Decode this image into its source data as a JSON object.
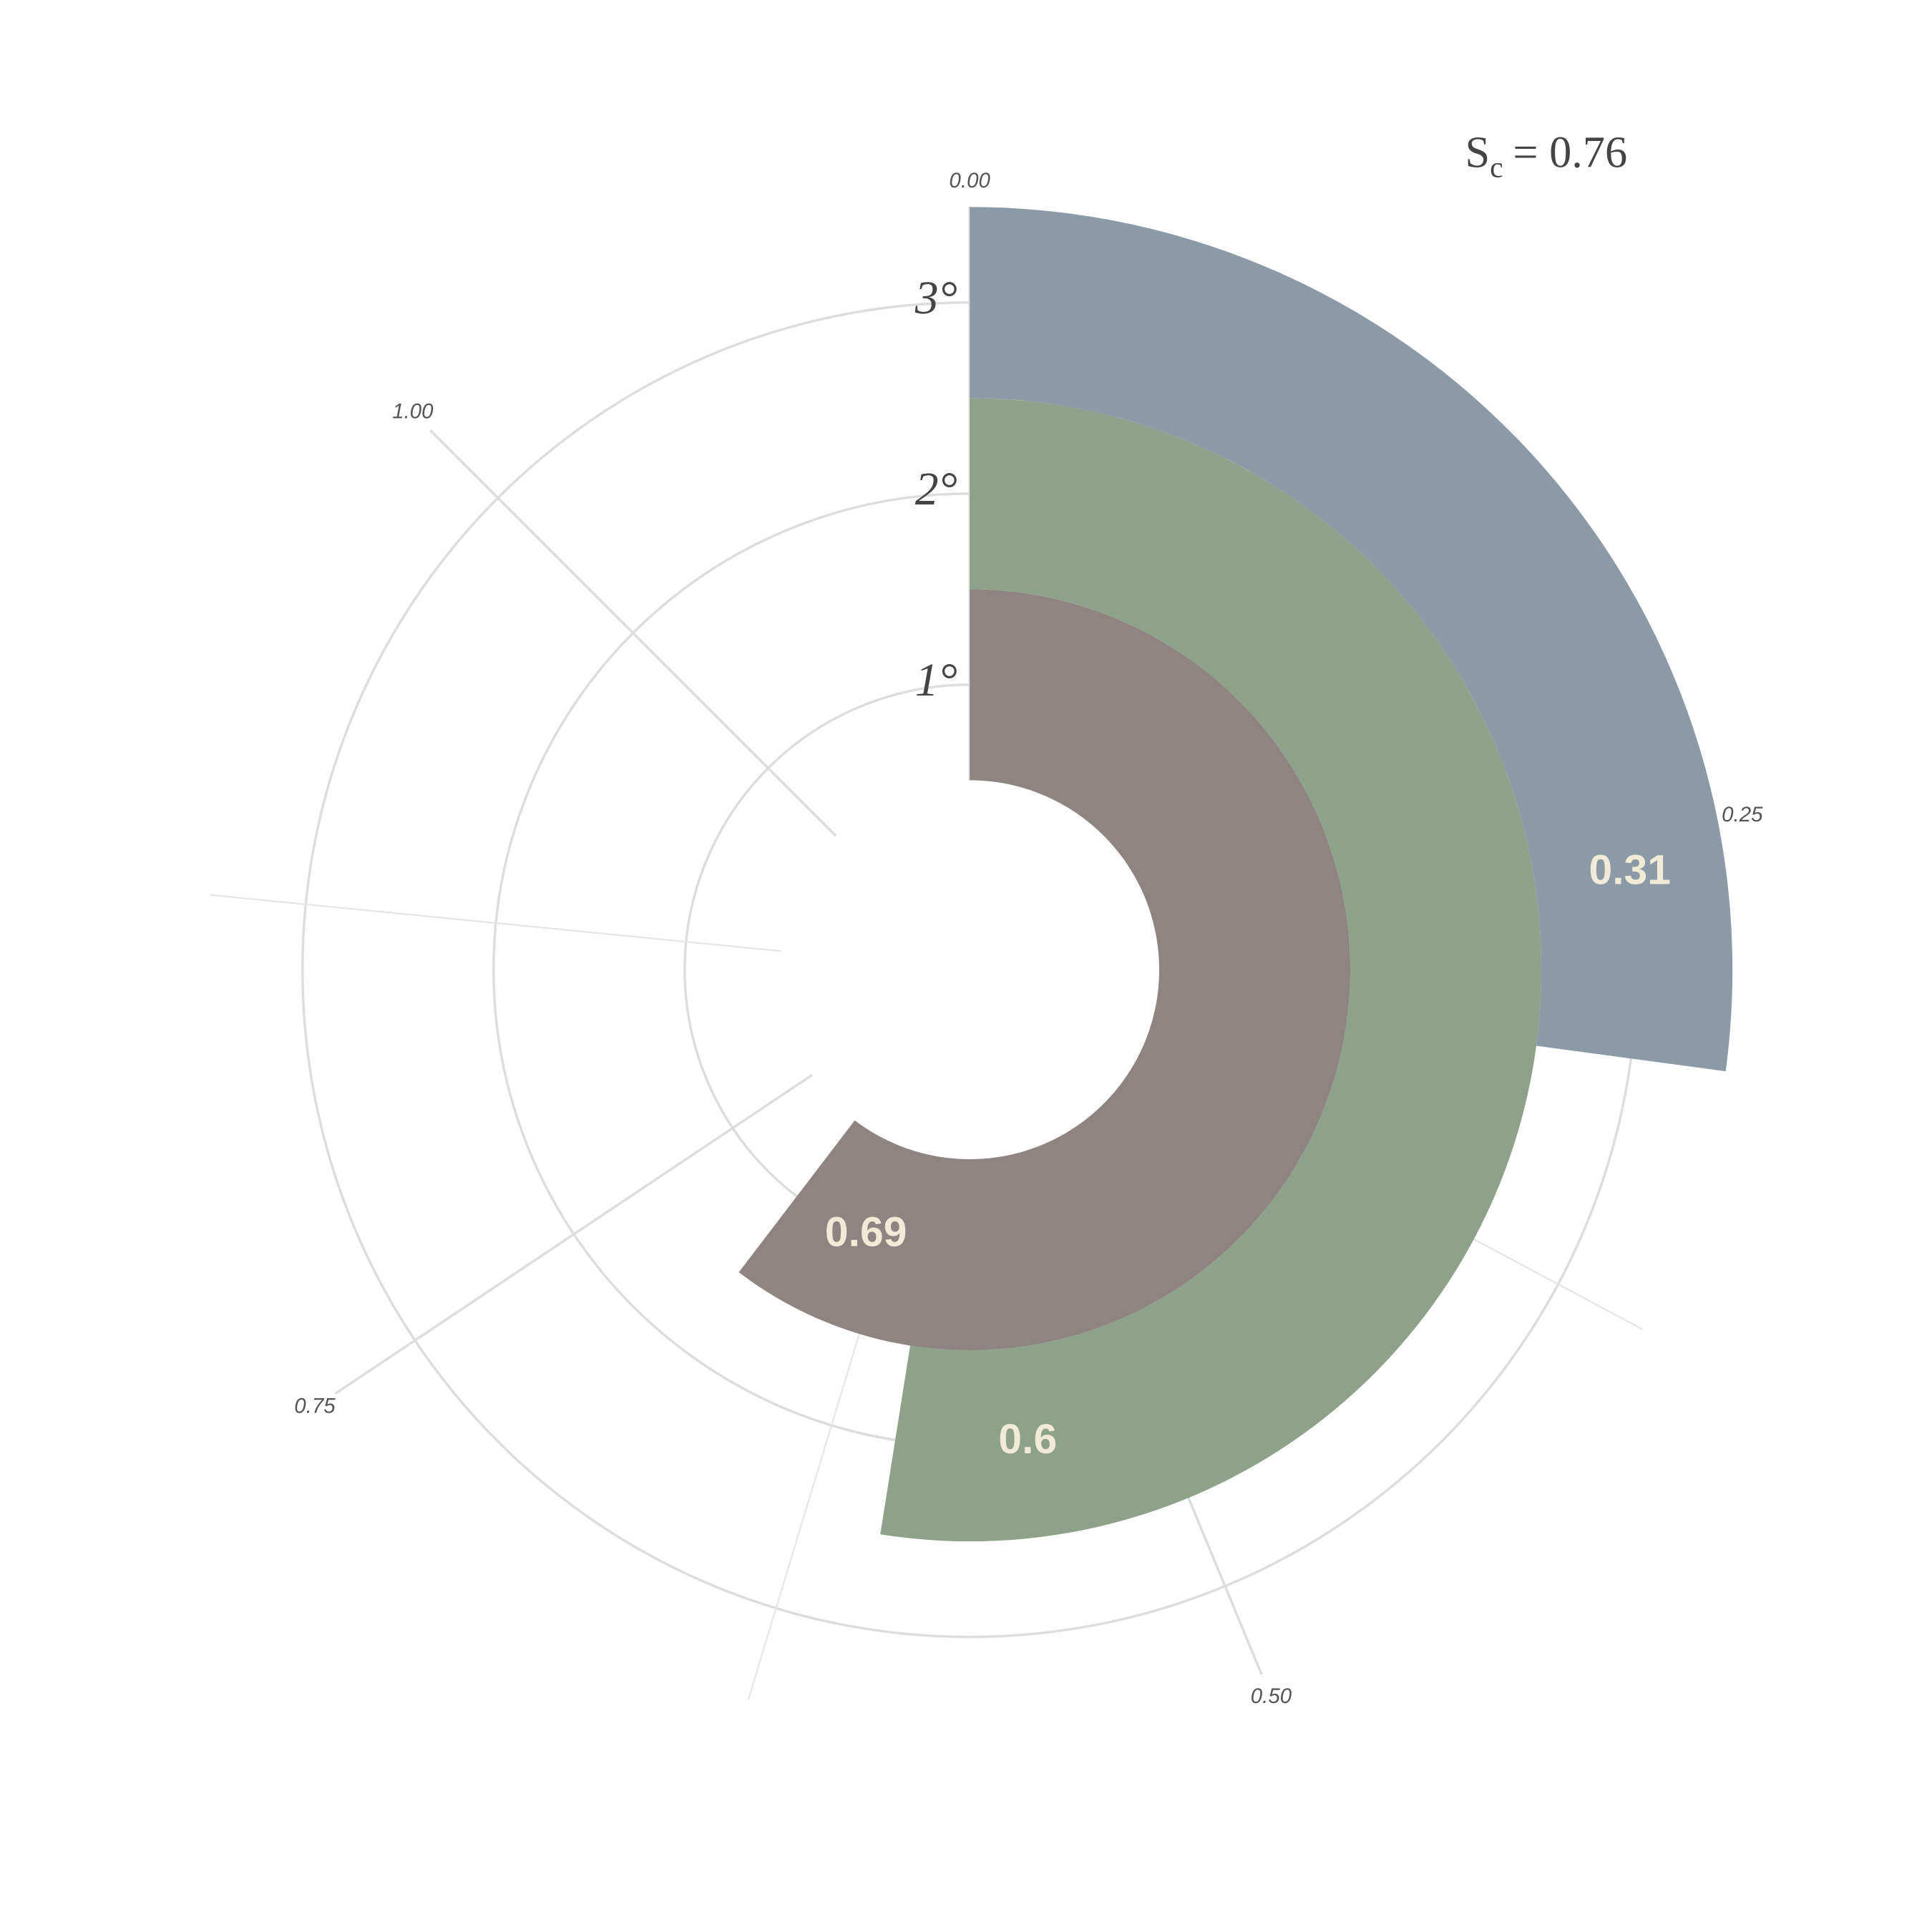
{
  "chart_data": {
    "type": "radial-bar",
    "categories": [
      "1°",
      "2°",
      "3°"
    ],
    "values": [
      0.69,
      0.6,
      0.31
    ],
    "colors": [
      "#8e8481",
      "#8da288",
      "#8c9aa8"
    ],
    "xlim": [
      0,
      1
    ],
    "xticks": [
      {
        "value": 0,
        "label": "0.00"
      },
      {
        "value": 0.25,
        "label": "0.25"
      },
      {
        "value": 0.5,
        "label": "0.50"
      },
      {
        "value": 0.75,
        "label": "0.75"
      },
      {
        "value": 1,
        "label": "1.00"
      }
    ],
    "xminor": [
      0.125,
      0.375,
      0.625,
      0.875
    ],
    "annotation": {
      "symbol": "S",
      "subscript": "c",
      "text": "= 0.76"
    }
  }
}
